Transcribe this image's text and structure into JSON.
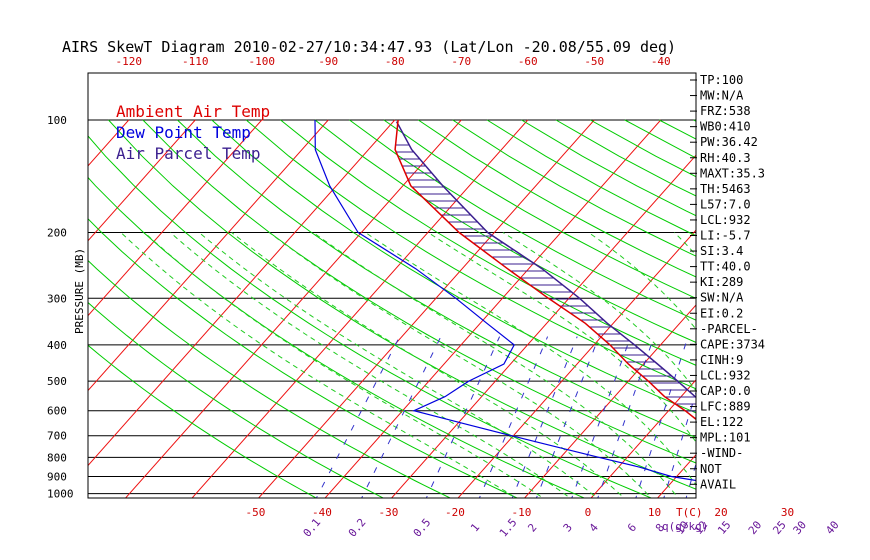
{
  "colors": {
    "isotherm": "#ee1111",
    "dry_adiabat": "#00cc00",
    "moist_adiabat": "#22cc22",
    "mixing_ratio": "#3333cc",
    "isobar": "#000000",
    "temperature": "#dd0000",
    "dewpoint": "#0000dd",
    "parcel": "#3b1f8f",
    "cape_hatch": "#3b1f8f",
    "top_axis_label": "#cc0000",
    "mixing_label": "#6a1a9a"
  },
  "chart_data": {
    "type": "skew-t",
    "title": "AIRS SkewT Diagram 2010-02-27/10:34:47.93 (Lat/Lon -20.08/55.09 deg)",
    "ylabel": "PRESSURE (MB)",
    "pressure_ticks": [
      100,
      200,
      300,
      400,
      500,
      600,
      700,
      800,
      900,
      1000
    ],
    "pressure_range": [
      1050,
      100
    ],
    "top_temperature_ticks": [
      -120,
      -110,
      -100,
      -90,
      -80,
      -70,
      -60,
      -50,
      -40
    ],
    "bottom_temperature_ticks": [
      -50,
      -40,
      -30,
      -20,
      -10,
      0,
      10,
      20,
      30
    ],
    "bottom_temperature_unit": "T(C)",
    "mixing_ratio_ticks": [
      "0.1",
      "0.2",
      "0.5",
      "1",
      "1.5",
      "2",
      "3",
      "4",
      "6",
      "8",
      "10",
      "12",
      "15",
      "20",
      "25",
      "30",
      "40"
    ],
    "mixing_ratio_unit": "q(g/kg)",
    "legend": [
      {
        "label": "Ambient Air Temp",
        "color": "#dd0000"
      },
      {
        "label": "Dew Point Temp",
        "color": "#0000dd"
      },
      {
        "label": "Air Parcel Temp",
        "color": "#3b1f8f"
      }
    ],
    "series": [
      {
        "name": "Ambient Air Temp",
        "points": [
          [
            1000,
            29.8
          ],
          [
            975,
            27.9
          ],
          [
            950,
            26.0
          ],
          [
            925,
            24.4
          ],
          [
            900,
            23.2
          ],
          [
            850,
            20.8
          ],
          [
            800,
            18.0
          ],
          [
            750,
            15.0
          ],
          [
            700,
            11.2
          ],
          [
            650,
            6.7
          ],
          [
            600,
            2.5
          ],
          [
            550,
            -2.5
          ],
          [
            500,
            -7.0
          ],
          [
            450,
            -12.3
          ],
          [
            400,
            -17.6
          ],
          [
            350,
            -24.2
          ],
          [
            300,
            -33.1
          ],
          [
            250,
            -43.2
          ],
          [
            200,
            -55.3
          ],
          [
            150,
            -68.8
          ],
          [
            120,
            -76.0
          ],
          [
            100,
            -79.5
          ]
        ]
      },
      {
        "name": "Dew Point Temp",
        "points": [
          [
            1000,
            24.2
          ],
          [
            975,
            22.0
          ],
          [
            950,
            18.6
          ],
          [
            925,
            14.0
          ],
          [
            900,
            9.2
          ],
          [
            850,
            3.2
          ],
          [
            800,
            -4.2
          ],
          [
            750,
            -12.0
          ],
          [
            700,
            -20.3
          ],
          [
            650,
            -29.0
          ],
          [
            600,
            -38.3
          ],
          [
            550,
            -35.5
          ],
          [
            500,
            -34.0
          ],
          [
            450,
            -31.0
          ],
          [
            400,
            -32.0
          ],
          [
            350,
            -39.0
          ],
          [
            300,
            -47.0
          ],
          [
            250,
            -57.0
          ],
          [
            200,
            -70.5
          ],
          [
            150,
            -81.0
          ],
          [
            120,
            -88.0
          ],
          [
            100,
            -92.0
          ]
        ]
      },
      {
        "name": "Air Parcel Temp",
        "points": [
          [
            1000,
            29.8
          ],
          [
            932,
            25.4
          ],
          [
            900,
            24.0
          ],
          [
            850,
            21.8
          ],
          [
            800,
            19.4
          ],
          [
            750,
            16.6
          ],
          [
            700,
            13.6
          ],
          [
            650,
            10.2
          ],
          [
            600,
            6.4
          ],
          [
            550,
            2.1
          ],
          [
            500,
            -2.6
          ],
          [
            450,
            -7.9
          ],
          [
            400,
            -13.9
          ],
          [
            350,
            -20.9
          ],
          [
            300,
            -28.4
          ],
          [
            250,
            -38.0
          ],
          [
            200,
            -51.0
          ],
          [
            150,
            -64.0
          ],
          [
            120,
            -73.5
          ],
          [
            101,
            -79.5
          ]
        ]
      }
    ],
    "indices": [
      "TP:100",
      "MW:N/A",
      "FRZ:538",
      "WB0:410",
      "PW:36.42",
      "RH:40.3",
      "MAXT:35.3",
      "TH:5463",
      "L57:7.0",
      "LCL:932",
      "LI:-5.7",
      "SI:3.4",
      "TT:40.0",
      "KI:289",
      "SW:N/A",
      "EI:0.2",
      "-PARCEL-",
      "CAPE:3734",
      "CINH:9",
      "LCL:932",
      "CAP:0.0",
      "LFC:889",
      "EL:122",
      "MPL:101",
      "-WIND-",
      "NOT",
      "AVAIL"
    ],
    "grid": true,
    "legend_position": "top-left"
  }
}
